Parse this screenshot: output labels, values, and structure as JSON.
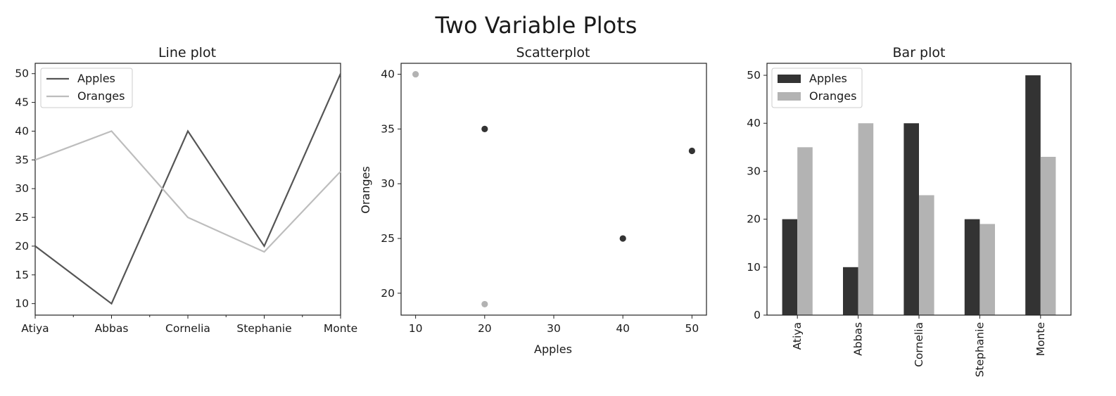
{
  "figure": {
    "title": "Two Variable Plots"
  },
  "colors": {
    "apples": "#333333",
    "oranges": "#b3b3b3",
    "apples_line": "#555555",
    "oranges_line": "#bdbdbd",
    "axis": "#222222"
  },
  "chart_data": [
    {
      "type": "line",
      "title": "Line plot",
      "categories": [
        "Atiya",
        "Abbas",
        "Cornelia",
        "Stephanie",
        "Monte"
      ],
      "series": [
        {
          "name": "Apples",
          "values": [
            20,
            10,
            40,
            20,
            50
          ]
        },
        {
          "name": "Oranges",
          "values": [
            35,
            40,
            25,
            19,
            33
          ]
        }
      ],
      "ylim": [
        8.0,
        51.8
      ],
      "yticks": [
        10,
        15,
        20,
        25,
        30,
        35,
        40,
        45,
        50
      ],
      "xlabel": "",
      "ylabel": "",
      "legend": "top-left",
      "grid": false
    },
    {
      "type": "scatter",
      "title": "Scatterplot",
      "xlabel": "Apples",
      "ylabel": "Oranges",
      "xlim": [
        7.9,
        52.1
      ],
      "ylim": [
        18.0,
        41.0
      ],
      "xticks": [
        10,
        20,
        30,
        40,
        50
      ],
      "yticks": [
        20,
        25,
        30,
        35,
        40
      ],
      "points": [
        {
          "x": 20,
          "y": 35,
          "color": "#333333"
        },
        {
          "x": 10,
          "y": 40,
          "color": "#b3b3b3"
        },
        {
          "x": 40,
          "y": 25,
          "color": "#333333"
        },
        {
          "x": 20,
          "y": 19,
          "color": "#b3b3b3"
        },
        {
          "x": 50,
          "y": 33,
          "color": "#333333"
        }
      ],
      "grid": false
    },
    {
      "type": "bar",
      "title": "Bar plot",
      "categories": [
        "Atiya",
        "Abbas",
        "Cornelia",
        "Stephanie",
        "Monte"
      ],
      "series": [
        {
          "name": "Apples",
          "values": [
            20,
            10,
            40,
            20,
            50
          ]
        },
        {
          "name": "Oranges",
          "values": [
            35,
            40,
            25,
            19,
            33
          ]
        }
      ],
      "ylim": [
        0,
        52.5
      ],
      "yticks": [
        0,
        10,
        20,
        30,
        40,
        50
      ],
      "xlabel": "",
      "ylabel": "",
      "legend": "top-left",
      "grid": false
    }
  ]
}
